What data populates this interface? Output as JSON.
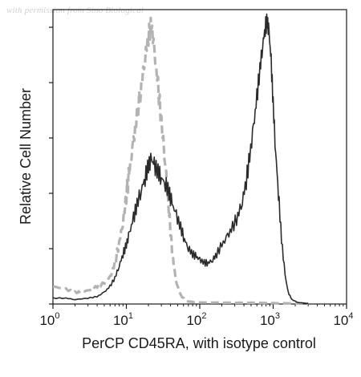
{
  "watermark": "with permission from Sino Biological",
  "chart_data": {
    "type": "line",
    "xlabel": "PerCP CD45RA, with isotype control",
    "ylabel": "Relative Cell Number",
    "x_scale": "log",
    "xlim": [
      1,
      10000
    ],
    "ylim": [
      0,
      100
    ],
    "x_ticks": [
      {
        "base": "10",
        "exp": "0",
        "value": 1
      },
      {
        "base": "10",
        "exp": "1",
        "value": 10
      },
      {
        "base": "10",
        "exp": "2",
        "value": 100
      },
      {
        "base": "10",
        "exp": "3",
        "value": 1000
      },
      {
        "base": "10",
        "exp": "4",
        "value": 10000
      }
    ],
    "y_tick_count": 6,
    "grid": false,
    "series": [
      {
        "style": "dashed",
        "color": "#b3b3b3",
        "points": [
          [
            1.0,
            6
          ],
          [
            1.5,
            5
          ],
          [
            2.0,
            4
          ],
          [
            2.5,
            4
          ],
          [
            3.2,
            5
          ],
          [
            4.0,
            6
          ],
          [
            5.0,
            7
          ],
          [
            6.0,
            9
          ],
          [
            7.0,
            14
          ],
          [
            8.0,
            21
          ],
          [
            9.0,
            28
          ],
          [
            10.0,
            37
          ],
          [
            11.0,
            45
          ],
          [
            12.5,
            55
          ],
          [
            14.0,
            64
          ],
          [
            16.0,
            74
          ],
          [
            18.0,
            84
          ],
          [
            20.0,
            91
          ],
          [
            22.0,
            95
          ],
          [
            24.0,
            86
          ],
          [
            27.0,
            74
          ],
          [
            30.0,
            62
          ],
          [
            34.0,
            48
          ],
          [
            38.0,
            32
          ],
          [
            42.0,
            18
          ],
          [
            47.0,
            8
          ],
          [
            55.0,
            3
          ],
          [
            65.0,
            1
          ],
          [
            90.0,
            0.5
          ],
          [
            150.0,
            0.5
          ],
          [
            300.0,
            0.4
          ],
          [
            600.0,
            0.4
          ],
          [
            1000.0,
            0.3
          ],
          [
            2000.0,
            0.2
          ],
          [
            3000.0,
            0.1
          ]
        ]
      },
      {
        "style": "solid",
        "color": "#2b2b2b",
        "points": [
          [
            1.0,
            2
          ],
          [
            1.5,
            2
          ],
          [
            2.0,
            1.5
          ],
          [
            3.0,
            2
          ],
          [
            4.0,
            2.5
          ],
          [
            5.0,
            4
          ],
          [
            6.0,
            6
          ],
          [
            7.0,
            9
          ],
          [
            8.0,
            13
          ],
          [
            9.0,
            17
          ],
          [
            10.0,
            20
          ],
          [
            11.0,
            24
          ],
          [
            12.5,
            29
          ],
          [
            14.0,
            34
          ],
          [
            16.0,
            39
          ],
          [
            18.0,
            43
          ],
          [
            20.0,
            47
          ],
          [
            22.0,
            49
          ],
          [
            24.0,
            47
          ],
          [
            27.0,
            45
          ],
          [
            30.0,
            43
          ],
          [
            34.0,
            41
          ],
          [
            38.0,
            38
          ],
          [
            42.0,
            34
          ],
          [
            48.0,
            30
          ],
          [
            55.0,
            26
          ],
          [
            62.0,
            22
          ],
          [
            70.0,
            19
          ],
          [
            80.0,
            17
          ],
          [
            90.0,
            16
          ],
          [
            100.0,
            15
          ],
          [
            115.0,
            14
          ],
          [
            130.0,
            14
          ],
          [
            150.0,
            15
          ],
          [
            170.0,
            17
          ],
          [
            200.0,
            20
          ],
          [
            240.0,
            23
          ],
          [
            280.0,
            26
          ],
          [
            330.0,
            30
          ],
          [
            380.0,
            35
          ],
          [
            430.0,
            42
          ],
          [
            480.0,
            50
          ],
          [
            540.0,
            60
          ],
          [
            600.0,
            70
          ],
          [
            660.0,
            80
          ],
          [
            720.0,
            88
          ],
          [
            780.0,
            94
          ],
          [
            830.0,
            96
          ],
          [
            880.0,
            92
          ],
          [
            940.0,
            82
          ],
          [
            1000.0,
            68
          ],
          [
            1080.0,
            52
          ],
          [
            1180.0,
            38
          ],
          [
            1300.0,
            22
          ],
          [
            1450.0,
            10
          ],
          [
            1600.0,
            4
          ],
          [
            1800.0,
            1.5
          ],
          [
            2200.0,
            0.5
          ],
          [
            3000.0,
            0.2
          ]
        ]
      }
    ]
  }
}
